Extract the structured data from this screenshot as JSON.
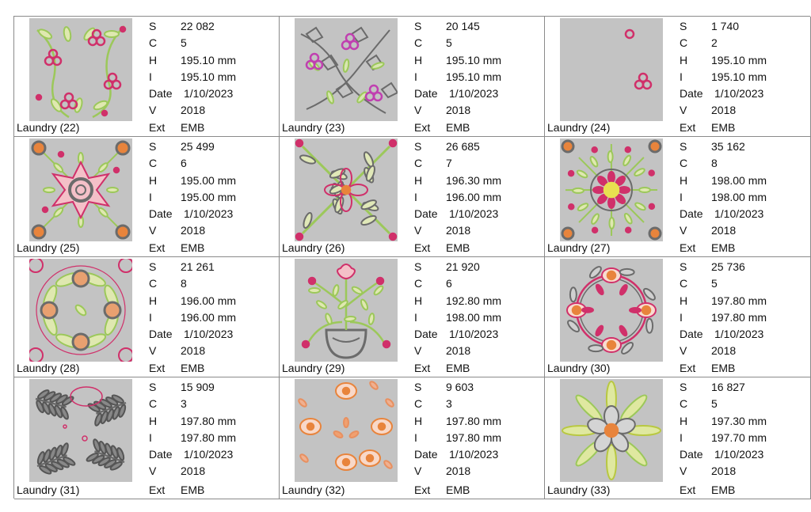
{
  "labels": {
    "stitches": "S",
    "colors": "C",
    "height": "H",
    "width": "I",
    "date": "Date",
    "version": "V",
    "ext": "Ext"
  },
  "designs": [
    {
      "name": "Laundry (22)",
      "stitches": "22 082",
      "colors": "5",
      "height": "195.10 mm",
      "width": "195.10 mm",
      "date": "1/10/2023",
      "version": "2018",
      "ext": "EMB",
      "icon": "floral-corner-icon"
    },
    {
      "name": "Laundry (23)",
      "stitches": "20 145",
      "colors": "5",
      "height": "195.10 mm",
      "width": "195.10 mm",
      "date": "1/10/2023",
      "version": "2018",
      "ext": "EMB",
      "icon": "floral-outline-icon"
    },
    {
      "name": "Laundry (24)",
      "stitches": "1 740",
      "colors": "2",
      "height": "195.10 mm",
      "width": "195.10 mm",
      "date": "1/10/2023",
      "version": "2018",
      "ext": "EMB",
      "icon": "berries-icon"
    },
    {
      "name": "Laundry (25)",
      "stitches": "25 499",
      "colors": "6",
      "height": "195.00 mm",
      "width": "195.00 mm",
      "date": "1/10/2023",
      "version": "2018",
      "ext": "EMB",
      "icon": "star-flower-icon"
    },
    {
      "name": "Laundry (26)",
      "stitches": "26 685",
      "colors": "7",
      "height": "196.30 mm",
      "width": "196.00 mm",
      "date": "1/10/2023",
      "version": "2018",
      "ext": "EMB",
      "icon": "leaf-cross-icon"
    },
    {
      "name": "Laundry (27)",
      "stitches": "35 162",
      "colors": "8",
      "height": "198.00 mm",
      "width": "198.00 mm",
      "date": "1/10/2023",
      "version": "2018",
      "ext": "EMB",
      "icon": "medallion-icon"
    },
    {
      "name": "Laundry (28)",
      "stitches": "21 261",
      "colors": "8",
      "height": "196.00 mm",
      "width": "196.00 mm",
      "date": "1/10/2023",
      "version": "2018",
      "ext": "EMB",
      "icon": "leaf-wreath-icon"
    },
    {
      "name": "Laundry (29)",
      "stitches": "21 920",
      "colors": "6",
      "height": "192.80 mm",
      "width": "198.00 mm",
      "date": "1/10/2023",
      "version": "2018",
      "ext": "EMB",
      "icon": "flower-vase-icon"
    },
    {
      "name": "Laundry (30)",
      "stitches": "25 736",
      "colors": "5",
      "height": "197.80 mm",
      "width": "197.80 mm",
      "date": "1/10/2023",
      "version": "2018",
      "ext": "EMB",
      "icon": "flower-ring-icon"
    },
    {
      "name": "Laundry (31)",
      "stitches": "15 909",
      "colors": "3",
      "height": "197.80 mm",
      "width": "197.80 mm",
      "date": "1/10/2023",
      "version": "2018",
      "ext": "EMB",
      "icon": "fern-corners-icon"
    },
    {
      "name": "Laundry (32)",
      "stitches": "9 603",
      "colors": "3",
      "height": "197.80 mm",
      "width": "197.80 mm",
      "date": "1/10/2023",
      "version": "2018",
      "ext": "EMB",
      "icon": "orange-dots-icon"
    },
    {
      "name": "Laundry (33)",
      "stitches": "16 827",
      "colors": "5",
      "height": "197.30 mm",
      "width": "197.70 mm",
      "date": "1/10/2023",
      "version": "2018",
      "ext": "EMB",
      "icon": "petal-star-icon"
    }
  ],
  "colors": {
    "thumb_bg": "#c3c3c3",
    "pink": "#d0306a",
    "green": "#9cc85a",
    "gray": "#6b6b6b",
    "orange": "#e8843c",
    "yellow": "#e8e050",
    "border": "#8a8a8a"
  }
}
